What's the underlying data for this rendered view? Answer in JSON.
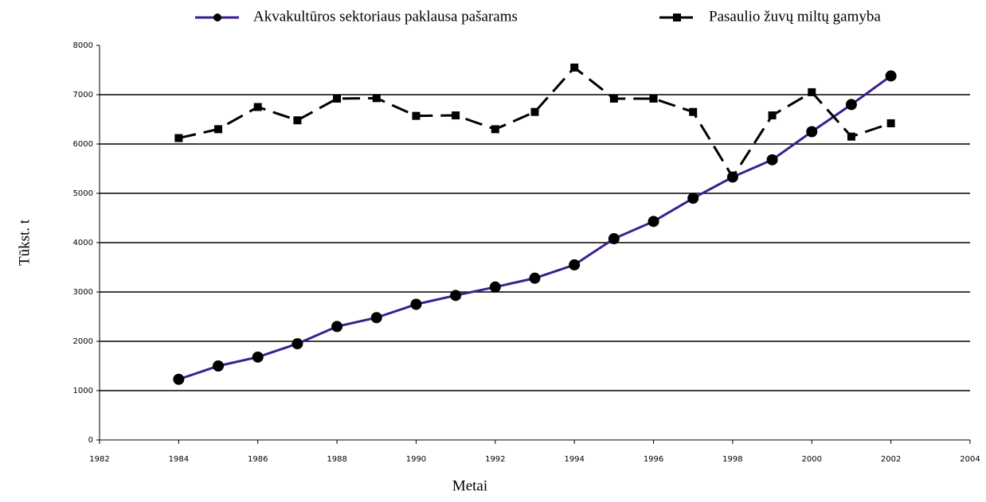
{
  "chart_data": {
    "type": "line",
    "x": [
      1984,
      1985,
      1986,
      1987,
      1988,
      1989,
      1990,
      1991,
      1992,
      1993,
      1994,
      1995,
      1996,
      1997,
      1998,
      1999,
      2000,
      2001,
      2002
    ],
    "series": [
      {
        "name": "Akvakultūros sektoriaus paklausa pašarams",
        "color": "#3d1f8c",
        "marker": "circle",
        "marker_color": "#000000",
        "style": "solid",
        "values": [
          1230,
          1500,
          1680,
          1950,
          2300,
          2480,
          2750,
          2930,
          3100,
          3280,
          3550,
          4080,
          4430,
          4900,
          5330,
          5680,
          6250,
          6800,
          7380
        ]
      },
      {
        "name": "Pasaulio žuvų miltų gamyba",
        "color": "#000000",
        "marker": "square",
        "marker_color": "#000000",
        "style": "dashed",
        "values": [
          6120,
          6300,
          6750,
          6480,
          6920,
          6930,
          6570,
          6580,
          6300,
          6650,
          7550,
          6920,
          6920,
          6650,
          5330,
          6580,
          7050,
          6150,
          6420
        ]
      }
    ],
    "xlabel": "Metai",
    "ylabel": "Tūkst. t",
    "xlim": [
      1982,
      2004
    ],
    "xticks": [
      1982,
      1984,
      1986,
      1988,
      1990,
      1992,
      1994,
      1996,
      1998,
      2000,
      2002,
      2004
    ],
    "ylim": [
      0,
      8000
    ],
    "yticks": [
      0,
      1000,
      2000,
      3000,
      4000,
      5000,
      6000,
      7000,
      8000
    ],
    "grid": true,
    "legend": "top"
  }
}
